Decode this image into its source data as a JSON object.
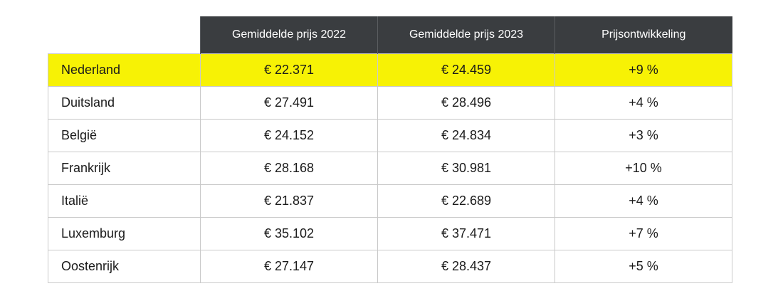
{
  "table": {
    "headers": [
      "",
      "Gemiddelde prijs 2022",
      "Gemiddelde prijs 2023",
      "Prijsontwikkeling"
    ],
    "highlight_color": "#f7f205",
    "header_color": "#3a3d40",
    "rows": [
      {
        "country": "Nederland",
        "price_2022": "€ 22.371",
        "price_2023": "€ 24.459",
        "change": "+9 %",
        "highlighted": true
      },
      {
        "country": "Duitsland",
        "price_2022": "€ 27.491",
        "price_2023": "€ 28.496",
        "change": "+4 %",
        "highlighted": false
      },
      {
        "country": "België",
        "price_2022": "€ 24.152",
        "price_2023": "€ 24.834",
        "change": "+3 %",
        "highlighted": false
      },
      {
        "country": "Frankrijk",
        "price_2022": "€ 28.168",
        "price_2023": "€ 30.981",
        "change": "+10 %",
        "highlighted": false
      },
      {
        "country": "Italië",
        "price_2022": "€ 21.837",
        "price_2023": "€ 22.689",
        "change": "+4 %",
        "highlighted": false
      },
      {
        "country": "Luxemburg",
        "price_2022": "€ 35.102",
        "price_2023": "€ 37.471",
        "change": "+7 %",
        "highlighted": false
      },
      {
        "country": "Oostenrijk",
        "price_2022": "€ 27.147",
        "price_2023": "€ 28.437",
        "change": "+5 %",
        "highlighted": false
      }
    ]
  }
}
